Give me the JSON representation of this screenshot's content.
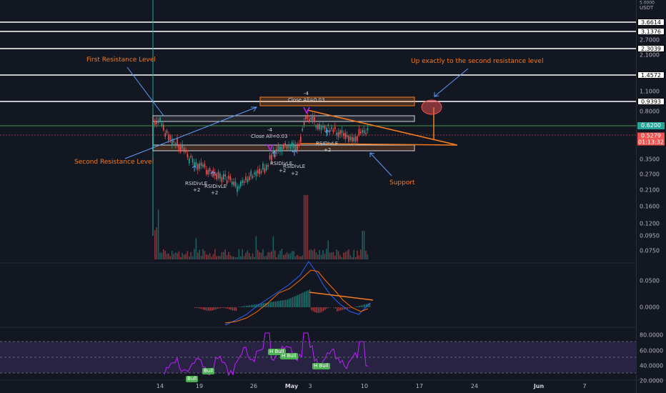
{
  "colors": {
    "background": "#131722",
    "up": "#26a69a",
    "down": "#ef5350",
    "annotation": "#f57c1f",
    "arrow": "#5b9cf6",
    "level_line": "#ffffff",
    "macd": "#2962ff",
    "signal": "#ff6d00",
    "rsi": "#c020ff",
    "rsi_band": "#7e57c2"
  },
  "price_axis": {
    "currency": "USDT",
    "top_value": "5.0000",
    "ticks": [
      "2.7000",
      "2.1000",
      "1.1000",
      "0.8000",
      "0.3500",
      "0.2700",
      "0.2100",
      "0.1600",
      "0.1200",
      "0.0950",
      "0.0750"
    ],
    "levels": [
      "3.6614",
      "3.1376",
      "2.3039",
      "1.4572",
      "0.9393"
    ],
    "green_level": "0.6200",
    "last_price": "0.5279",
    "countdown": "01:13:32"
  },
  "macd_axis": {
    "ticks": [
      "0.0500",
      "0.0000"
    ]
  },
  "rsi_axis": {
    "ticks": [
      "80.0000",
      "60.0000",
      "40.0000",
      "20.0000"
    ]
  },
  "time_axis": {
    "labels": [
      "14",
      "19",
      "26",
      "May",
      "3",
      "10",
      "17",
      "24",
      "Jun",
      "7"
    ]
  },
  "annotations": {
    "first_resistance": "First Resistance Level",
    "second_resistance": "Second Resistance Level",
    "up_exactly": "Up exactly to the second resistance level",
    "support": "Support"
  },
  "signals": {
    "rsidivle_1": "RSIDivLE",
    "plus2_1": "+2",
    "rsidivle_2": "RSIDivLE",
    "plus2_2": "+2",
    "minus4_1": "-4",
    "close_all_1": "Close All=0.03",
    "rsidivle_3": "RSIDivLE",
    "plus2_3": "+2",
    "rsidivle_4": "RSIDivLE",
    "plus2_4": "+2",
    "minus4_2": "-4",
    "close_all_2": "Close All=0.03",
    "rsidivle_5": "RSIDivLE",
    "plus2_5": "+2"
  },
  "rsi_tags": {
    "bull_1": "Bull",
    "bull_2": "Bull",
    "h_bull_1": "H Bull",
    "h_bull_2": "H Bull",
    "h_bull_3": "H Bull"
  }
}
